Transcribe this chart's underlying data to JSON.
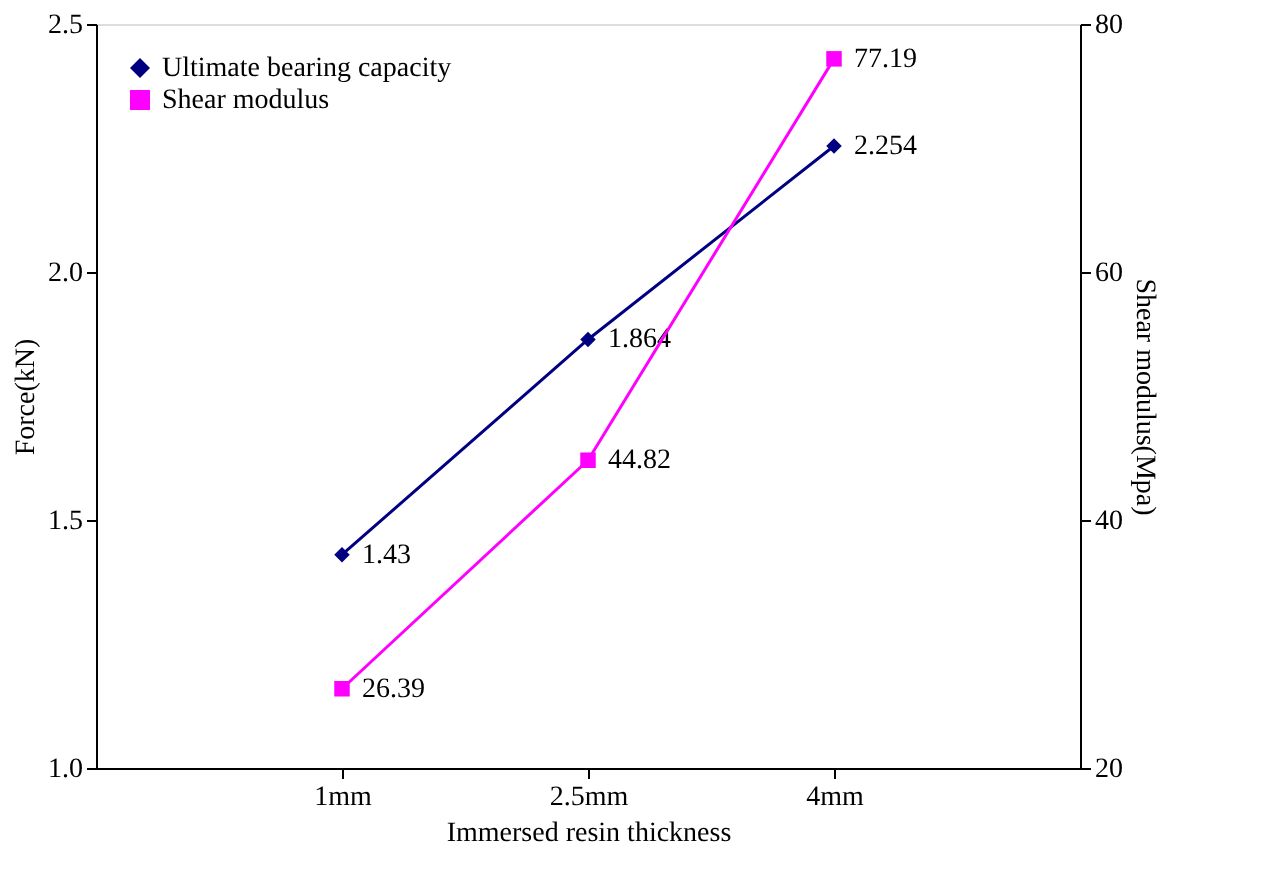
{
  "chart_data": {
    "type": "line",
    "categories": [
      "1mm",
      "2.5mm",
      "4mm"
    ],
    "xlabel": "Immersed resin thickness",
    "ylabel": "Force(kN)",
    "y2label": "Shear modulus(Mpa)",
    "series": [
      {
        "name": "Ultimate bearing capacity",
        "color": "#000080",
        "marker": "diamond",
        "values": [
          1.43,
          1.864,
          2.254
        ]
      },
      {
        "name": "Shear modulus",
        "color": "#ff00ff",
        "marker": "square",
        "axis": "y2",
        "values": [
          26.39,
          44.82,
          77.19
        ]
      }
    ],
    "ylim": [
      1.0,
      2.5
    ],
    "yticks": [
      {
        "value": 1.0,
        "label": "1.0"
      },
      {
        "value": 1.5,
        "label": "1.5"
      },
      {
        "value": 2.0,
        "label": "2.0"
      },
      {
        "value": 2.5,
        "label": "2.5"
      }
    ],
    "y2lim": [
      20,
      80
    ],
    "y2ticks": [
      20,
      40,
      60,
      80
    ],
    "data_labels": true,
    "legend": "top left",
    "grid": false
  }
}
